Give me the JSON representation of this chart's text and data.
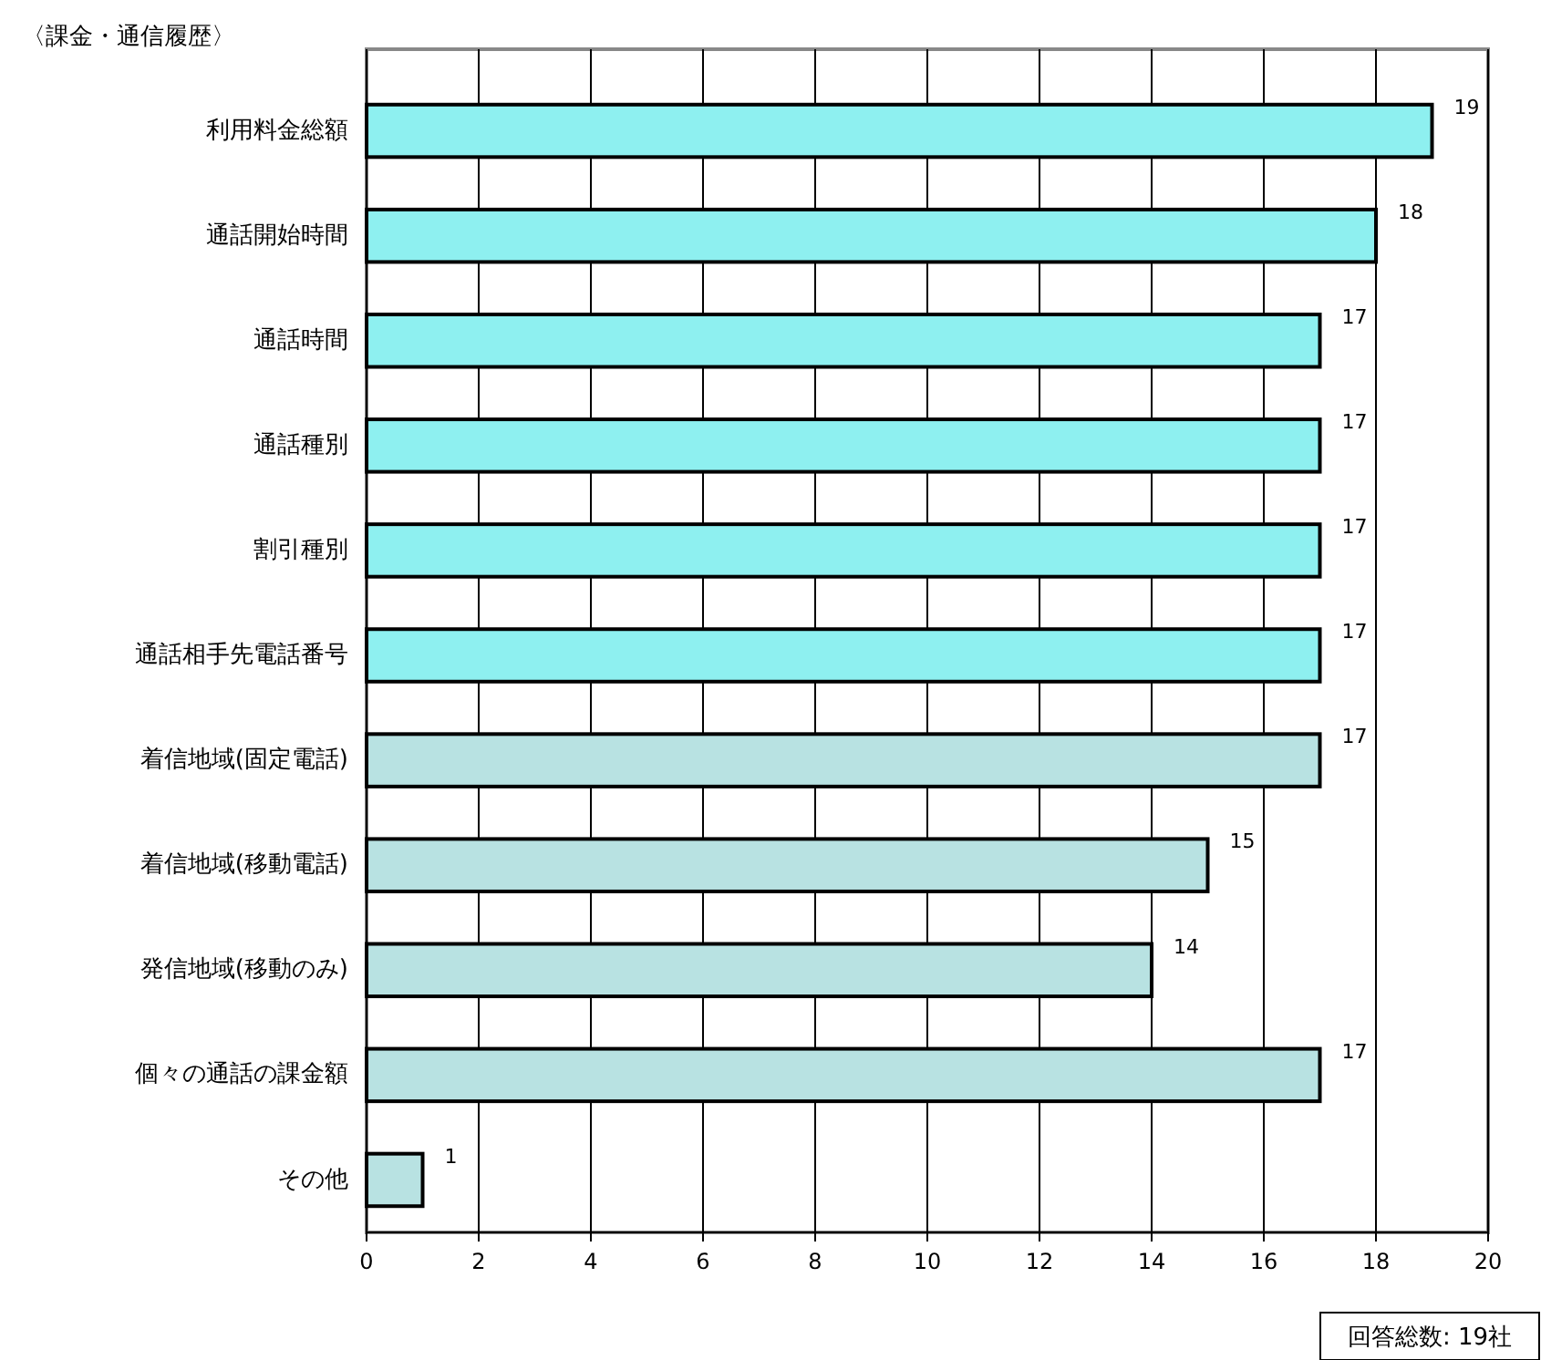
{
  "chart_data": {
    "type": "bar",
    "orientation": "horizontal",
    "title": "〈課金・通信履歴〉",
    "categories": [
      "利用料金総額",
      "通話開始時間",
      "通話時間",
      "通話種別",
      "割引種別",
      "通話相手先電話番号",
      "着信地域(固定電話)",
      "着信地域(移動電話)",
      "発信地域(移動のみ)",
      "個々の通話の課金額",
      "その他"
    ],
    "values": [
      19,
      18,
      17,
      17,
      17,
      17,
      17,
      15,
      14,
      17,
      1
    ],
    "colors": [
      "#8ef0f0",
      "#8ef0f0",
      "#8ef0f0",
      "#8ef0f0",
      "#8ef0f0",
      "#8ef0f0",
      "#b8e2e2",
      "#b8e2e2",
      "#b8e2e2",
      "#b8e2e2",
      "#b8e2e2"
    ],
    "xlim": [
      0,
      20
    ],
    "xticks": [
      0,
      2,
      4,
      6,
      8,
      10,
      12,
      14,
      16,
      18,
      20
    ],
    "grid": "x",
    "data_labels": true,
    "annotations": [
      "回答総数: 19社"
    ]
  }
}
